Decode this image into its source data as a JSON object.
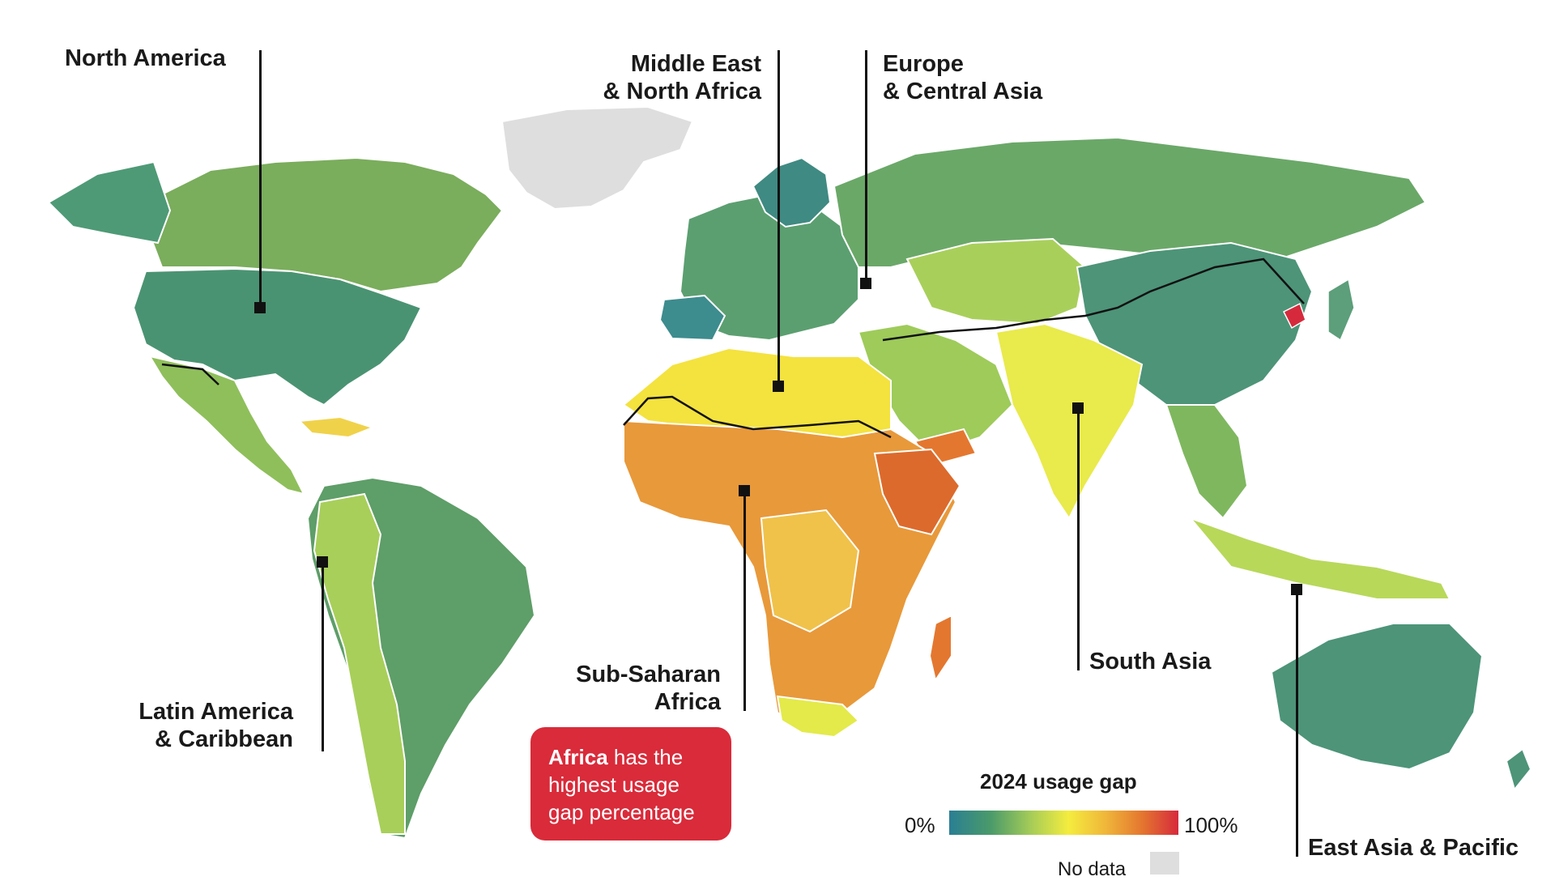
{
  "regions": {
    "north_america": "North America",
    "mena": "Middle East\n& North Africa",
    "europe_central_asia": "Europe\n& Central Asia",
    "south_asia": "South Asia",
    "sub_saharan_africa": "Sub-Saharan\nAfrica",
    "latin_america": "Latin America\n& Caribbean",
    "east_asia_pacific": "East Asia & Pacific"
  },
  "callout": {
    "strong": "Africa",
    "rest": " has the highest usage gap percentage",
    "color": "#d92b3a"
  },
  "legend": {
    "title": "2024 usage gap",
    "min_label": "0%",
    "max_label": "100%",
    "no_data_label": "No data",
    "scale_colors": [
      "#2a7f93",
      "#4a9a6a",
      "#a7cd57",
      "#f4ec3e",
      "#f0b73a",
      "#e4772f",
      "#d62a3c"
    ],
    "no_data_color": "#dedede"
  }
}
